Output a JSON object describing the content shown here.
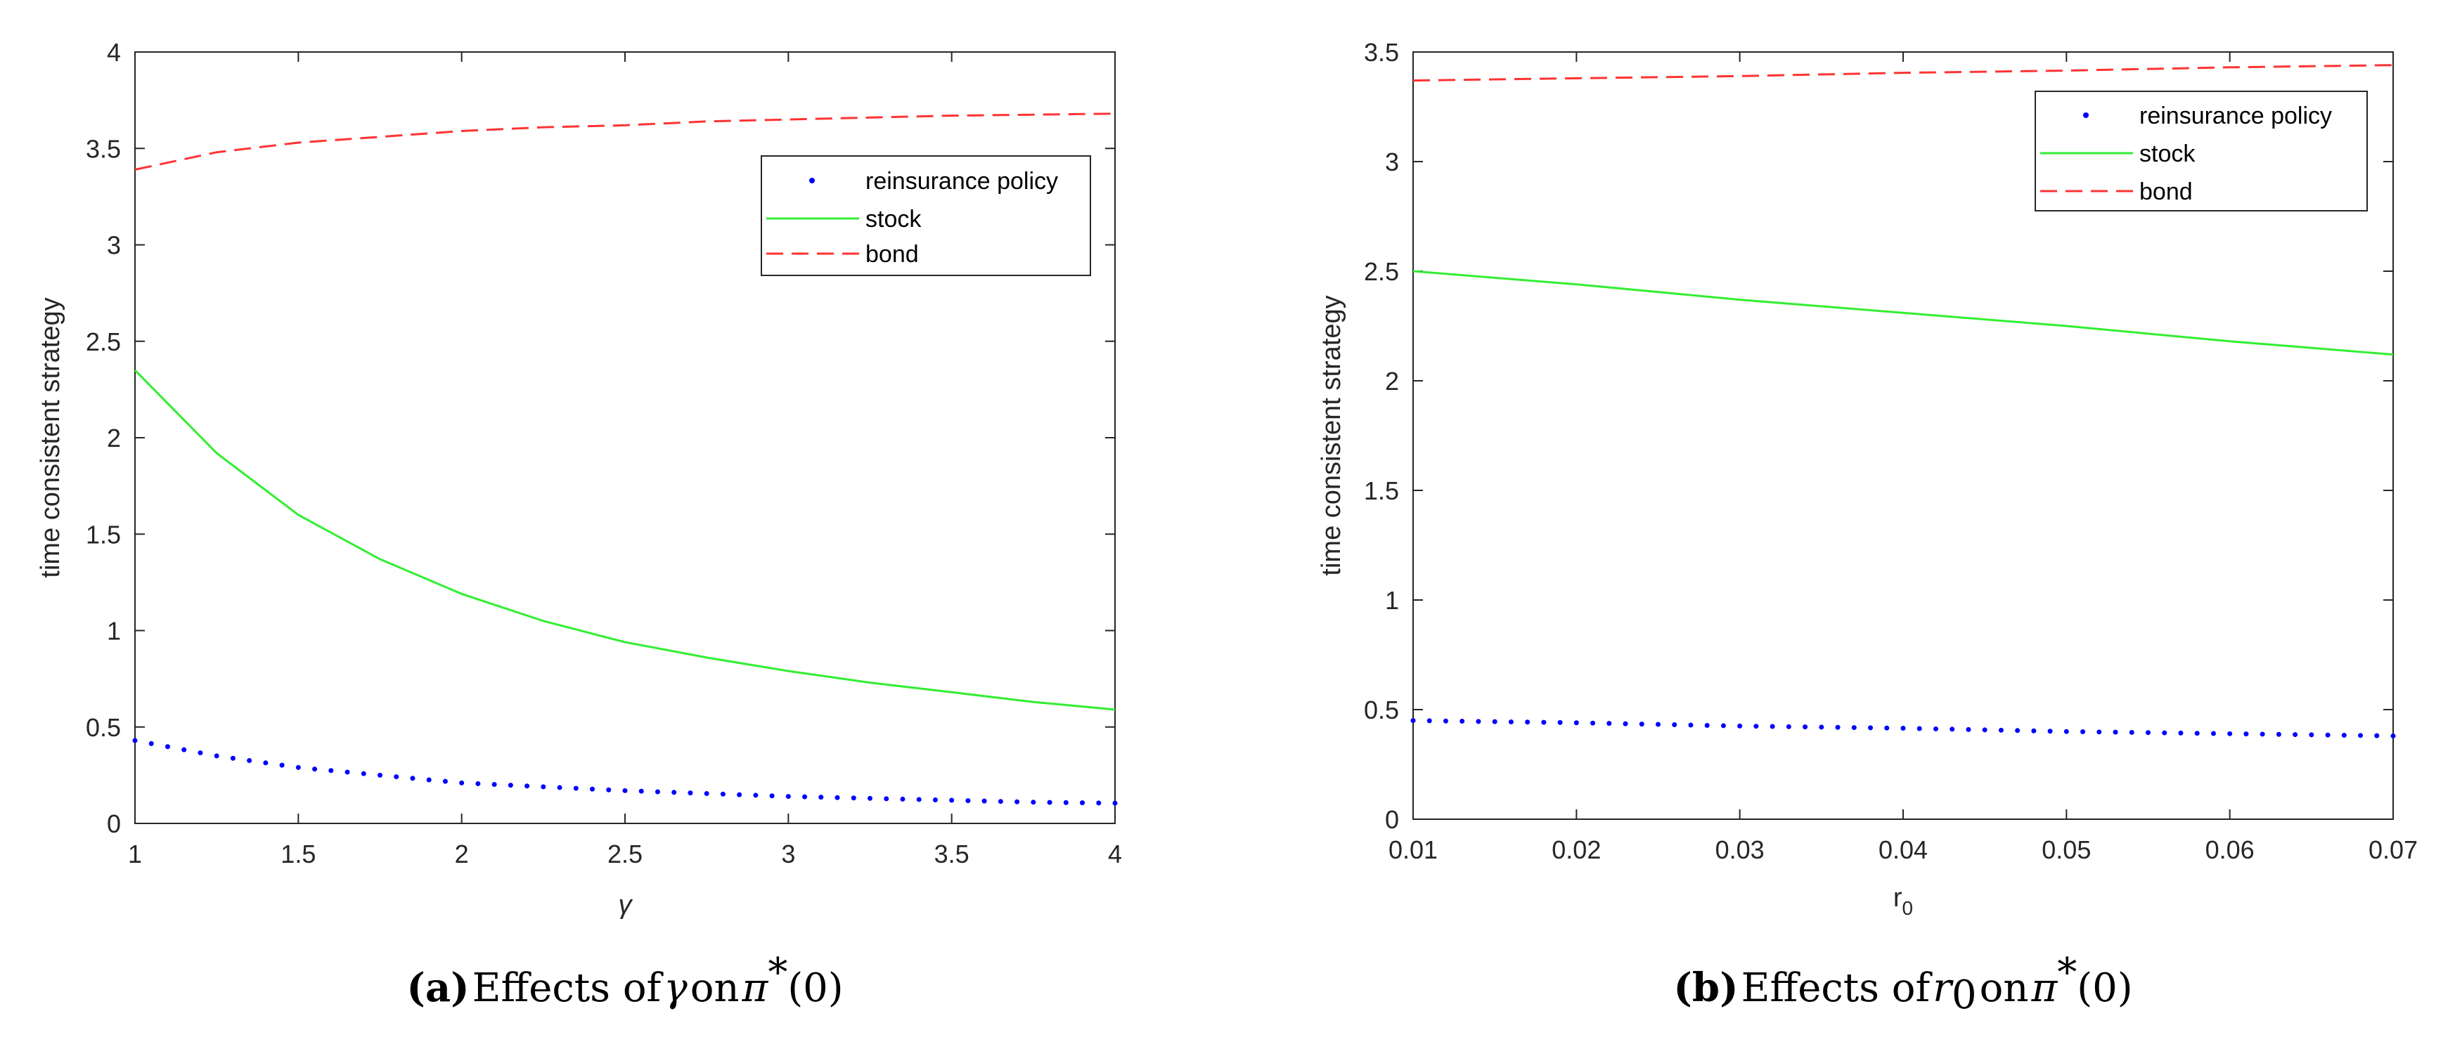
{
  "chart_data": [
    {
      "type": "line",
      "xlabel": "γ",
      "ylabel": "time consistent strategy",
      "xlim": [
        1,
        4
      ],
      "ylim": [
        0,
        4
      ],
      "xticks": [
        "1",
        "1.5",
        "2",
        "2.5",
        "3",
        "3.5",
        "4"
      ],
      "yticks": [
        "0",
        "0.5",
        "1",
        "1.5",
        "2",
        "2.5",
        "3",
        "3.5",
        "4"
      ],
      "legend_position": "upper-right",
      "x": [
        1.0,
        1.25,
        1.5,
        1.75,
        2.0,
        2.25,
        2.5,
        2.75,
        3.0,
        3.25,
        3.5,
        3.75,
        4.0
      ],
      "series": [
        {
          "name": "reinsurance policy",
          "style": "dotted",
          "color": "#0000ff",
          "values": [
            0.43,
            0.35,
            0.29,
            0.25,
            0.21,
            0.19,
            0.17,
            0.155,
            0.14,
            0.13,
            0.12,
            0.11,
            0.105
          ]
        },
        {
          "name": "stock",
          "style": "solid",
          "color": "#33ee33",
          "values": [
            2.35,
            1.92,
            1.6,
            1.37,
            1.19,
            1.05,
            0.94,
            0.86,
            0.79,
            0.73,
            0.68,
            0.63,
            0.59
          ]
        },
        {
          "name": "bond",
          "style": "dashed",
          "color": "#ff3333",
          "values": [
            3.39,
            3.48,
            3.53,
            3.56,
            3.59,
            3.61,
            3.62,
            3.64,
            3.65,
            3.66,
            3.67,
            3.675,
            3.68
          ]
        }
      ]
    },
    {
      "type": "line",
      "xlabel": "r",
      "xlabel_sub": "0",
      "ylabel": "time consistent strategy",
      "xlim": [
        0.01,
        0.07
      ],
      "ylim": [
        0,
        3.5
      ],
      "xticks": [
        "0.01",
        "0.02",
        "0.03",
        "0.04",
        "0.05",
        "0.06",
        "0.07"
      ],
      "yticks": [
        "0",
        "0.5",
        "1",
        "1.5",
        "2",
        "2.5",
        "3",
        "3.5"
      ],
      "legend_position": "upper-right",
      "x": [
        0.01,
        0.02,
        0.03,
        0.04,
        0.05,
        0.06,
        0.07
      ],
      "series": [
        {
          "name": "reinsurance policy",
          "style": "dotted",
          "color": "#0000ff",
          "values": [
            0.45,
            0.44,
            0.425,
            0.415,
            0.4,
            0.39,
            0.38
          ]
        },
        {
          "name": "stock",
          "style": "solid",
          "color": "#33ee33",
          "values": [
            2.5,
            2.44,
            2.37,
            2.31,
            2.25,
            2.18,
            2.12
          ]
        },
        {
          "name": "bond",
          "style": "dashed",
          "color": "#ff3333",
          "values": [
            3.37,
            3.38,
            3.39,
            3.405,
            3.415,
            3.43,
            3.44
          ]
        }
      ]
    }
  ],
  "captions": [
    {
      "label": "(a)",
      "text_pre": "Effects of",
      "symbol": "γ",
      "text_mid": "on",
      "symbol2": "π",
      "sup": "*",
      "arg": "(0)"
    },
    {
      "label": "(b)",
      "text_pre": "Effects of",
      "symbol": "r",
      "symbol_sub": "0",
      "text_mid": "on",
      "symbol2": "π",
      "sup": "*",
      "arg": "(0)"
    }
  ]
}
